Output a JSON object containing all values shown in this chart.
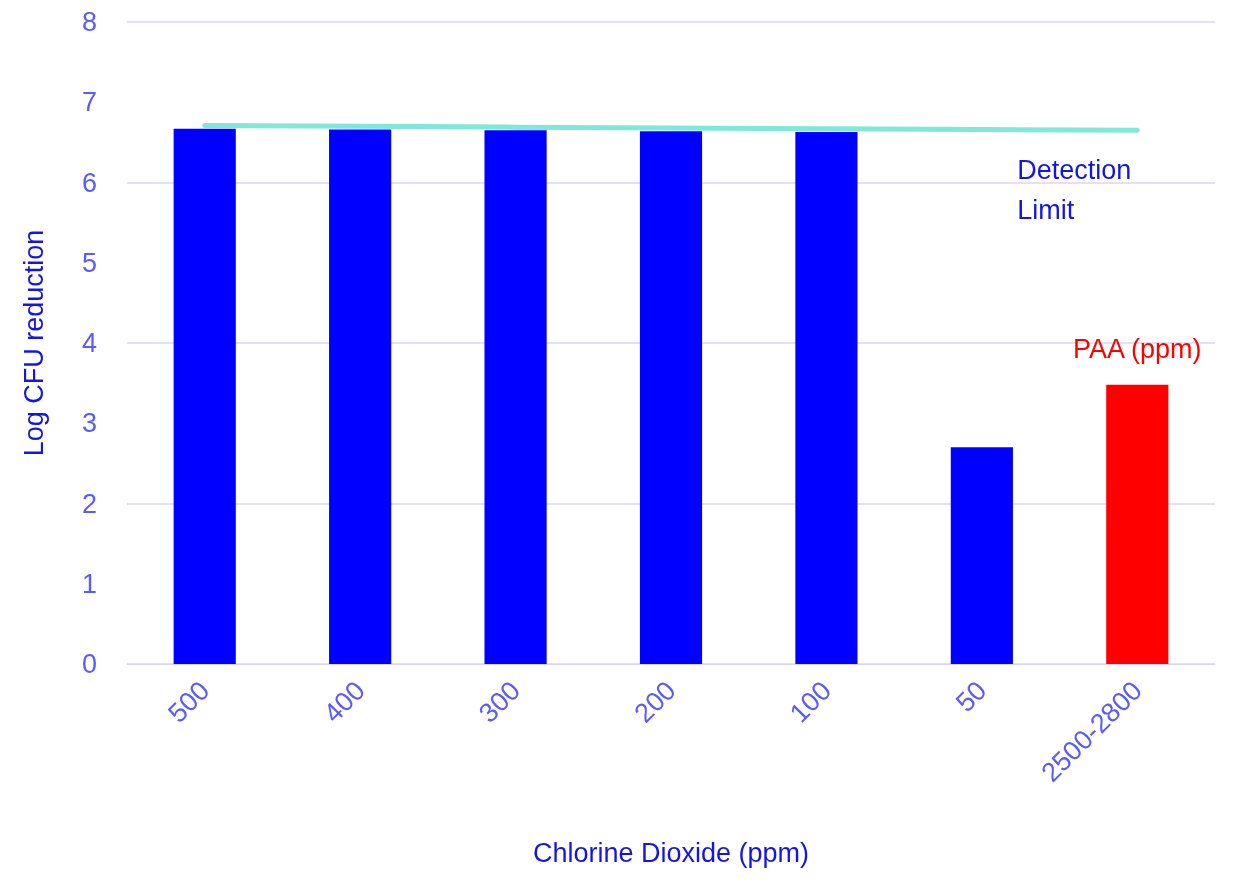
{
  "chart_data": {
    "type": "bar",
    "xlabel": "Chlorine Dioxide (ppm)",
    "ylabel": "Log CFU reduction",
    "categories": [
      "500",
      "400",
      "300",
      "200",
      "100",
      "50",
      "2500-2800"
    ],
    "series": [
      {
        "colors": [
          "#0000ff",
          "#0000ff",
          "#0000ff",
          "#0000ff",
          "#0000ff",
          "#0000ff",
          "#ff0000"
        ],
        "values": [
          6.67,
          6.66,
          6.65,
          6.64,
          6.63,
          2.7,
          3.48
        ]
      },
      {
        "type": "line",
        "name": "Detection Limit",
        "color": "#7fe8d8",
        "values": [
          6.71,
          6.7,
          6.69,
          6.68,
          6.67,
          6.66,
          6.65
        ]
      }
    ],
    "annotations": [
      {
        "text": "PAA (ppm)",
        "x": "2500-2800",
        "y": 3.48
      }
    ],
    "ylim": [
      0,
      8
    ],
    "yticks": [
      0,
      1,
      2,
      3,
      4,
      5,
      6,
      7,
      8
    ],
    "grid": "y",
    "legend": false,
    "marker": "none"
  }
}
